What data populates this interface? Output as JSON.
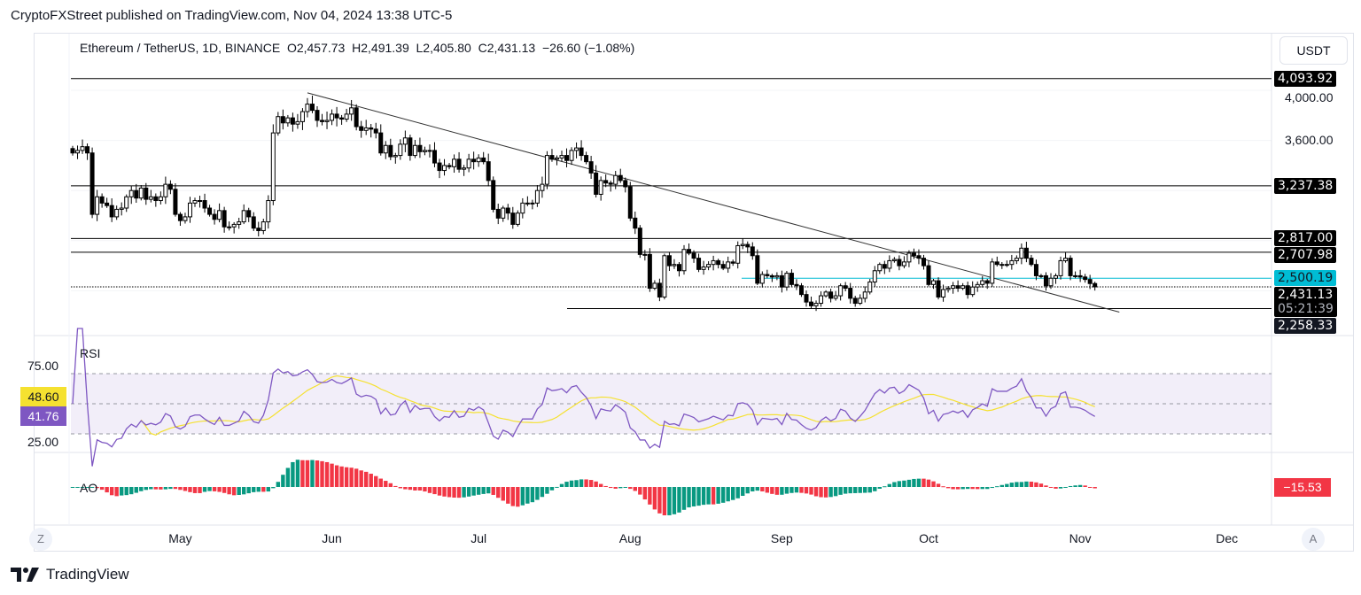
{
  "header": {
    "published": "CryptoFXStreet published on TradingView.com, Nov 04, 2024 13:38 UTC-5"
  },
  "legend": {
    "symbol": "Ethereum / TetherUS, 1D, BINANCE",
    "open": "O2,457.73",
    "high": "H2,491.39",
    "low": "L2,405.80",
    "close": "C2,431.13",
    "change": "−26.60 (−1.08%)"
  },
  "price_scale": {
    "currency": "USDT",
    "ticks": [
      "4,000.00",
      "3,600.00"
    ]
  },
  "levels": [
    {
      "label": "4,093.92",
      "value": 4093.92,
      "color": "#000000"
    },
    {
      "label": "3,237.38",
      "value": 3237.38,
      "color": "#000000"
    },
    {
      "label": "2,817.00",
      "value": 2817.0,
      "color": "#000000"
    },
    {
      "label": "2,707.98",
      "value": 2707.98,
      "color": "#000000"
    },
    {
      "label": "2,500.19",
      "value": 2500.19,
      "color": "#00bcd4"
    },
    {
      "label": "2,431.13",
      "value": 2431.13,
      "color": "#000000",
      "countdown": "05:21:39"
    },
    {
      "label": "2,258.33",
      "value": 2258.33,
      "color": "#000000"
    }
  ],
  "rsi": {
    "title": "RSI",
    "ticks": [
      "75.00",
      "25.00"
    ],
    "value": "41.76",
    "ma_value": "48.60",
    "line_color": "#7e57c2",
    "ma_color": "#f5e130",
    "band": [
      30,
      70
    ]
  },
  "ao": {
    "title": "AO",
    "value": "−15.53",
    "up_color": "#089981",
    "down_color": "#f23645"
  },
  "time_axis": {
    "labels": [
      "May",
      "Jun",
      "Jul",
      "Aug",
      "Sep",
      "Oct",
      "Nov",
      "Dec"
    ],
    "left_button": "Z",
    "right_button": "A"
  },
  "footer": {
    "brand": "TradingView"
  },
  "chart_data": {
    "type": "candlestick",
    "interval": "1D",
    "ylim": [
      2100,
      4150
    ],
    "trendline": {
      "from": {
        "month": "2024-05",
        "day": 27,
        "price": 3980
      },
      "to": {
        "month": "2024-11",
        "day": 9,
        "price": 2230
      }
    },
    "closes_by_month": [
      {
        "month": "2024-04",
        "first_day": 9,
        "closes": [
          3500,
          3520,
          3550,
          3500,
          3010,
          3150,
          3100,
          3080,
          2990,
          3050,
          3060,
          3150,
          3200,
          3140,
          3220,
          3130,
          3150,
          3120,
          3150,
          3250,
          3210,
          3010
        ]
      },
      {
        "month": "2024-05",
        "first_day": 1,
        "closes": [
          2960,
          2990,
          3100,
          3120,
          3120,
          3060,
          3010,
          2970,
          3040,
          2910,
          2910,
          2930,
          2950,
          3040,
          2990,
          2900,
          2880,
          2950,
          3120,
          3660,
          3790,
          3740,
          3780,
          3730,
          3750,
          3830,
          3890,
          3840,
          3760,
          3750,
          3760
        ]
      },
      {
        "month": "2024-06",
        "first_day": 1,
        "closes": [
          3810,
          3780,
          3770,
          3810,
          3860,
          3710,
          3680,
          3700,
          3690,
          3660,
          3500,
          3560,
          3470,
          3480,
          3570,
          3620,
          3480,
          3560,
          3510,
          3520,
          3520,
          3420,
          3360,
          3400,
          3390,
          3450,
          3370,
          3380,
          3450,
          3430
        ]
      },
      {
        "month": "2024-07",
        "first_day": 1,
        "closes": [
          3460,
          3430,
          3280,
          3050,
          2980,
          3060,
          3020,
          2930,
          3020,
          3100,
          3100,
          3100,
          3200,
          3250,
          3480,
          3450,
          3460,
          3480,
          3440,
          3520,
          3540,
          3480,
          3430,
          3340,
          3170,
          3280,
          3260,
          3250,
          3320,
          3280,
          3230
        ]
      },
      {
        "month": "2024-08",
        "first_day": 1,
        "closes": [
          2980,
          2900,
          2690,
          2690,
          2420,
          2460,
          2350,
          2680,
          2600,
          2610,
          2560,
          2730,
          2700,
          2660,
          2570,
          2590,
          2610,
          2640,
          2610,
          2580,
          2630,
          2620,
          2760,
          2770,
          2750,
          2680,
          2460,
          2530,
          2520,
          2510,
          2520
        ]
      },
      {
        "month": "2024-09",
        "first_day": 1,
        "closes": [
          2430,
          2540,
          2450,
          2440,
          2370,
          2310,
          2280,
          2300,
          2360,
          2390,
          2340,
          2360,
          2440,
          2420,
          2340,
          2300,
          2340,
          2390,
          2470,
          2560,
          2610,
          2580,
          2640,
          2650,
          2600,
          2630,
          2700,
          2680,
          2660,
          2600
        ]
      },
      {
        "month": "2024-10",
        "first_day": 1,
        "closes": [
          2450,
          2480,
          2350,
          2410,
          2420,
          2440,
          2420,
          2440,
          2370,
          2430,
          2450,
          2480,
          2460,
          2630,
          2610,
          2610,
          2610,
          2640,
          2660,
          2740,
          2660,
          2610,
          2520,
          2520,
          2440,
          2500,
          2520,
          2640,
          2660,
          2520,
          2520
        ]
      },
      {
        "month": "2024-11",
        "first_day": 1,
        "closes": [
          2510,
          2490,
          2457.73,
          2431.13
        ]
      }
    ]
  }
}
